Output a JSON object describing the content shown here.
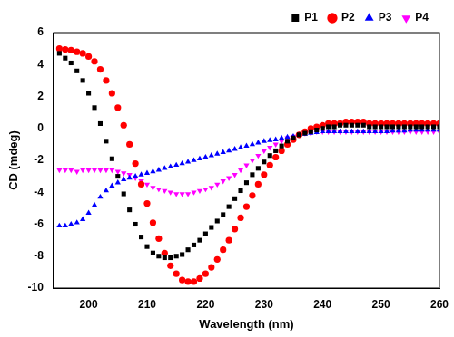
{
  "chart_data": {
    "type": "scatter",
    "x_label": "Wavelength (nm)",
    "y_label": "CD (mdeg)",
    "x": [
      195,
      196,
      197,
      198,
      199,
      200,
      201,
      202,
      203,
      204,
      205,
      206,
      207,
      208,
      209,
      210,
      211,
      212,
      213,
      214,
      215,
      216,
      217,
      218,
      219,
      220,
      221,
      222,
      223,
      224,
      225,
      226,
      227,
      228,
      229,
      230,
      231,
      232,
      233,
      234,
      235,
      236,
      237,
      238,
      239,
      240,
      241,
      242,
      243,
      244,
      245,
      246,
      247,
      248,
      249,
      250,
      251,
      252,
      253,
      254,
      255,
      256,
      257,
      258,
      259,
      260
    ],
    "series": [
      {
        "name": "P1",
        "color": "#000000",
        "marker": "square",
        "values": [
          4.7,
          4.4,
          4.1,
          3.6,
          3.0,
          2.2,
          1.3,
          0.3,
          -0.8,
          -1.9,
          -3.0,
          -4.1,
          -5.1,
          -6.0,
          -6.8,
          -7.4,
          -7.8,
          -8.0,
          -8.1,
          -8.1,
          -8.0,
          -7.9,
          -7.6,
          -7.3,
          -7.0,
          -6.6,
          -6.2,
          -5.8,
          -5.4,
          -4.9,
          -4.4,
          -3.9,
          -3.4,
          -2.9,
          -2.5,
          -2.1,
          -1.7,
          -1.4,
          -1.1,
          -0.8,
          -0.6,
          -0.4,
          -0.3,
          -0.2,
          -0.1,
          0.0,
          0.1,
          0.1,
          0.2,
          0.2,
          0.2,
          0.2,
          0.2,
          0.1,
          0.1,
          0.1,
          0.1,
          0.1,
          0.1,
          0.1,
          0.1,
          0.1,
          0.1,
          0.1,
          0.1,
          0.1
        ]
      },
      {
        "name": "P2",
        "color": "#ff0000",
        "marker": "circle",
        "values": [
          5.0,
          4.95,
          4.9,
          4.8,
          4.7,
          4.5,
          4.2,
          3.7,
          3.0,
          2.2,
          1.3,
          0.2,
          -1.0,
          -2.2,
          -3.5,
          -4.7,
          -5.9,
          -6.9,
          -7.8,
          -8.6,
          -9.1,
          -9.5,
          -9.6,
          -9.6,
          -9.4,
          -9.1,
          -8.7,
          -8.2,
          -7.6,
          -7.0,
          -6.3,
          -5.6,
          -4.9,
          -4.2,
          -3.5,
          -2.9,
          -2.3,
          -1.8,
          -1.4,
          -1.0,
          -0.7,
          -0.4,
          -0.2,
          0.0,
          0.1,
          0.2,
          0.3,
          0.3,
          0.3,
          0.4,
          0.4,
          0.4,
          0.4,
          0.3,
          0.3,
          0.3,
          0.3,
          0.3,
          0.3,
          0.3,
          0.3,
          0.3,
          0.3,
          0.3,
          0.3,
          0.3
        ]
      },
      {
        "name": "P3",
        "color": "#0000ff",
        "marker": "triangle",
        "values": [
          -6.1,
          -6.1,
          -6.0,
          -5.9,
          -5.7,
          -5.3,
          -4.8,
          -4.3,
          -3.9,
          -3.6,
          -3.4,
          -3.2,
          -3.1,
          -3.0,
          -2.9,
          -2.8,
          -2.7,
          -2.6,
          -2.5,
          -2.4,
          -2.3,
          -2.2,
          -2.1,
          -2.0,
          -1.9,
          -1.8,
          -1.7,
          -1.6,
          -1.5,
          -1.4,
          -1.3,
          -1.2,
          -1.1,
          -1.0,
          -0.9,
          -0.8,
          -0.75,
          -0.7,
          -0.6,
          -0.55,
          -0.5,
          -0.4,
          -0.35,
          -0.3,
          -0.25,
          -0.2,
          -0.2,
          -0.2,
          -0.2,
          -0.2,
          -0.2,
          -0.2,
          -0.2,
          -0.2,
          -0.2,
          -0.2,
          -0.2,
          -0.15,
          -0.15,
          -0.15,
          -0.1,
          -0.1,
          -0.1,
          -0.1,
          -0.1,
          -0.1
        ]
      },
      {
        "name": "P4",
        "color": "#ff00ff",
        "marker": "triangle-down",
        "values": [
          -2.6,
          -2.6,
          -2.6,
          -2.7,
          -2.6,
          -2.6,
          -2.6,
          -2.6,
          -2.6,
          -2.6,
          -2.7,
          -2.8,
          -2.9,
          -3.1,
          -3.3,
          -3.5,
          -3.7,
          -3.8,
          -3.9,
          -4.0,
          -4.1,
          -4.1,
          -4.1,
          -4.0,
          -3.9,
          -3.8,
          -3.7,
          -3.5,
          -3.3,
          -3.1,
          -2.9,
          -2.6,
          -2.3,
          -2.0,
          -1.7,
          -1.4,
          -1.2,
          -1.0,
          -0.8,
          -0.6,
          -0.5,
          -0.4,
          -0.3,
          -0.3,
          -0.2,
          -0.2,
          -0.2,
          -0.2,
          -0.2,
          -0.2,
          -0.2,
          -0.2,
          -0.2,
          -0.2,
          -0.2,
          -0.2,
          -0.2,
          -0.2,
          -0.2,
          -0.2,
          -0.2,
          -0.2,
          -0.2,
          -0.2,
          -0.2,
          -0.2
        ]
      }
    ],
    "xlim": [
      194,
      260
    ],
    "xticks": [
      200,
      210,
      220,
      230,
      240,
      250,
      260
    ],
    "ylim": [
      -10,
      6
    ],
    "yticks": [
      -10,
      -8,
      -6,
      -4,
      -2,
      0,
      2,
      4,
      6
    ],
    "grid": false,
    "legend": "top"
  }
}
